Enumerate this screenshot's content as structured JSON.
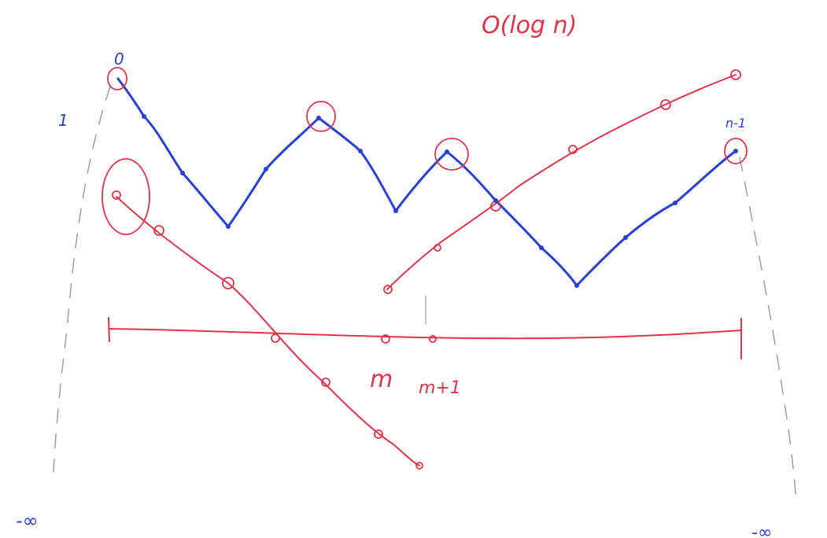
{
  "colors": {
    "red": "#e0344a",
    "blue": "#2a3fd6",
    "gray": "#9aa0a6"
  },
  "labels": {
    "complexity": "O(log n)",
    "top_zero": "0",
    "left_one": "1",
    "m": "m",
    "m_plus_1": "m+1",
    "n_minus_1": "n-1",
    "neg_inf_left": "-∞",
    "neg_inf_right": "-∞"
  },
  "diagram": {
    "blue_curve_peaks_circled": 4,
    "red_lines": [
      "descending",
      "ascending",
      "axis"
    ]
  }
}
